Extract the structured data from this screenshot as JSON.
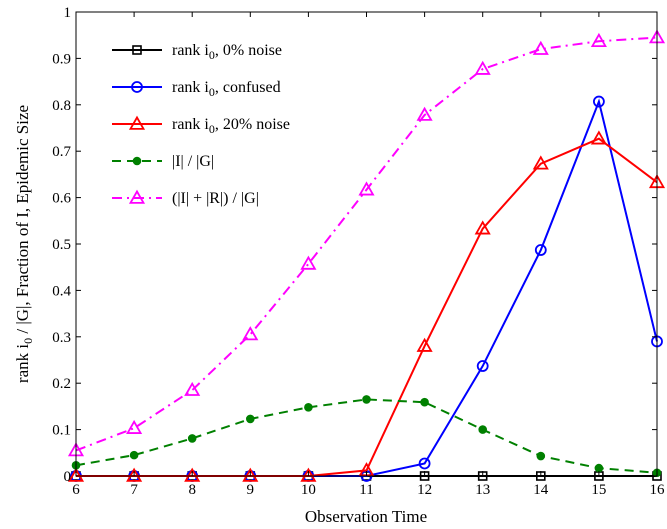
{
  "chart_data": {
    "type": "line",
    "xlabel": "Observation Time",
    "ylabel": {
      "base": "rank i",
      "sub": "0",
      "rest": " / |G|, Fraction of I, Epidemic Size"
    },
    "xlim": [
      6,
      16
    ],
    "ylim": [
      0,
      1
    ],
    "x_ticks": [
      6,
      7,
      8,
      9,
      10,
      11,
      12,
      13,
      14,
      15,
      16
    ],
    "y_ticks": [
      0,
      0.1,
      0.2,
      0.3,
      0.4,
      0.5,
      0.6,
      0.7,
      0.8,
      0.9,
      1
    ],
    "y_tick_labels": [
      "0",
      "0.1",
      "0.2",
      "0.3",
      "0.4",
      "0.5",
      "0.6",
      "0.7",
      "0.8",
      "0.9",
      "1"
    ],
    "grid": false,
    "legend_position": "top-left",
    "x": [
      6,
      7,
      8,
      9,
      10,
      11,
      12,
      13,
      14,
      15,
      16
    ],
    "series": [
      {
        "name": "rank i0, 0% noise",
        "legend_label": {
          "base": "rank i",
          "sub": "0",
          "rest": ", 0% noise"
        },
        "color": "#000000",
        "marker": "square",
        "dash": "solid",
        "values": [
          0,
          0,
          0,
          0,
          0,
          0,
          0,
          0,
          0,
          0,
          0
        ]
      },
      {
        "name": "rank i0, confused",
        "legend_label": {
          "base": "rank i",
          "sub": "0",
          "rest": ", confused"
        },
        "color": "#0000ff",
        "marker": "circle",
        "dash": "solid",
        "values": [
          0,
          0,
          0,
          0,
          0,
          0,
          0.027,
          0.237,
          0.487,
          0.807,
          0.29
        ]
      },
      {
        "name": "rank i0, 20% noise",
        "legend_label": {
          "base": "rank i",
          "sub": "0",
          "rest": ", 20% noise"
        },
        "color": "#ff0000",
        "marker": "triangle",
        "dash": "solid",
        "values": [
          0,
          0,
          0,
          0,
          0,
          0.012,
          0.28,
          0.533,
          0.673,
          0.727,
          0.633
        ]
      },
      {
        "name": "|I| / |G|",
        "legend_label": {
          "base": "|I| / |G|",
          "sub": "",
          "rest": ""
        },
        "color": "#008000",
        "marker": "dot",
        "dash": "dashed",
        "values": [
          0.023,
          0.045,
          0.081,
          0.123,
          0.148,
          0.165,
          0.159,
          0.1,
          0.043,
          0.017,
          0.007
        ]
      },
      {
        "name": "(|I| + |R|) / |G|",
        "legend_label": {
          "base": "(|I| + |R|) / |G|",
          "sub": "",
          "rest": ""
        },
        "color": "#ff00ff",
        "marker": "triangle-open",
        "dash": "dashdot",
        "values": [
          0.055,
          0.103,
          0.185,
          0.305,
          0.457,
          0.617,
          0.778,
          0.877,
          0.92,
          0.937,
          0.945
        ]
      }
    ]
  }
}
